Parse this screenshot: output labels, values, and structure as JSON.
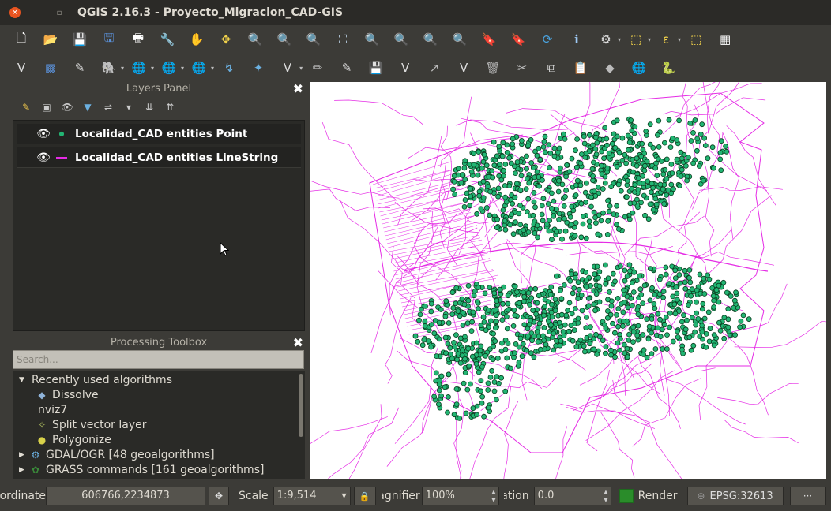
{
  "window": {
    "title": "QGIS 2.16.3 - Proyecto_Migracion_CAD-GIS",
    "close_glyph": "✕",
    "minimize_glyph": "–",
    "maximize_glyph": "▫"
  },
  "toolbar1": {
    "icons": [
      "new-project",
      "open-project",
      "save-project",
      "save-as",
      "print-composer",
      "composer-manager",
      "pan",
      "pan-to-selection",
      "zoom-in",
      "zoom-out",
      "zoom-native",
      "zoom-full",
      "zoom-selection",
      "zoom-layer",
      "zoom-last",
      "zoom-next",
      "new-bookmark",
      "show-bookmarks",
      "refresh",
      "identify",
      "action",
      "select",
      "select-value",
      "deselect",
      "attribute-table"
    ],
    "glyphs": [
      "🗋",
      "📂",
      "💾",
      "🖫",
      "🖶",
      "🔧",
      "✋",
      "✥",
      "🔍",
      "🔍",
      "🔍",
      "⛶",
      "🔍",
      "🔍",
      "🔍",
      "🔍",
      "🔖",
      "🔖",
      "⟳",
      "ℹ",
      "⚙",
      "⬚",
      "ε",
      "⬚",
      "▦"
    ],
    "colors": [
      "#ffffff",
      "#e8b33a",
      "#5a8fd6",
      "#5a8fd6",
      "#ffffff",
      "#ffffff",
      "#ffffff",
      "#f2d34b",
      "#cfe8ff",
      "#cfe8ff",
      "#cfe8ff",
      "#cfe8ff",
      "#f5e07a",
      "#cfe8ff",
      "#cfe8ff",
      "#cfe8ff",
      "#ffffff",
      "#ffffff",
      "#4aa3e0",
      "#9ec9f5",
      "#dddddd",
      "#f2d34b",
      "#f2d34b",
      "#f2d34b",
      "#ffffff"
    ]
  },
  "toolbar2": {
    "icons": [
      "add-vector",
      "add-raster",
      "add-delimited",
      "add-postgis",
      "add-wms",
      "add-wcs",
      "add-wfs",
      "add-virtual",
      "add-spatialite",
      "new-shapefile",
      "digitize-current-edits",
      "toggle-editing",
      "save-edits",
      "add-feature",
      "move-feature",
      "node-tool",
      "delete-selected",
      "cut-features",
      "copy-features",
      "paste-features",
      "gps",
      "globe",
      "python"
    ],
    "glyphs": [
      "V",
      "▩",
      "✎",
      "🐘",
      "🌐",
      "🌐",
      "🌐",
      "↯",
      "✦",
      "V",
      "✏",
      "✎",
      "💾",
      "V",
      "↗",
      "V",
      "🗑",
      "✂",
      "⧉",
      "📋",
      "◆",
      "🌐",
      "🐍"
    ],
    "colors": [
      "#dddddd",
      "#5a8fd6",
      "#dddddd",
      "#6c8ebf",
      "#dddddd",
      "#dddddd",
      "#dddddd",
      "#6bb0e0",
      "#6bb0e0",
      "#dddddd",
      "#bbbbbb",
      "#dddddd",
      "#aaaaaa",
      "#dddddd",
      "#bbbbbb",
      "#dddddd",
      "#bbbbbb",
      "#bbbbbb",
      "#dddddd",
      "#dddddd",
      "#bbbbbb",
      "#dddddd",
      "#f2c94c"
    ]
  },
  "layers_panel": {
    "title": "Layers Panel",
    "close_glyph": "✖",
    "toolbar_glyphs": [
      "✎",
      "▣",
      "👁",
      "▼",
      "⇌",
      "▾",
      "⇊",
      "⇈"
    ],
    "layers": [
      {
        "name": "Localidad_CAD entities Point",
        "geometry": "point",
        "visible": true,
        "eye": "👁"
      },
      {
        "name": "Localidad_CAD entities LineString",
        "geometry": "line",
        "visible": true,
        "eye": "👁"
      }
    ]
  },
  "processing_toolbox": {
    "title": "Processing Toolbox",
    "close_glyph": "✖",
    "search_placeholder": "Search...",
    "tree": [
      {
        "label": "Recently used algorithms",
        "level": 0,
        "expanded": true,
        "arrow": "▼",
        "icon": ""
      },
      {
        "label": "Dissolve",
        "level": 1,
        "arrow": "",
        "icon": "◆"
      },
      {
        "label": "nviz7",
        "level": 1,
        "arrow": "",
        "icon": ""
      },
      {
        "label": "Split vector layer",
        "level": 1,
        "arrow": "",
        "icon": "✧"
      },
      {
        "label": "Polygonize",
        "level": 1,
        "arrow": "",
        "icon": "●"
      },
      {
        "label": "GDAL/OGR [48 geoalgorithms]",
        "level": 0,
        "expanded": false,
        "arrow": "▶",
        "icon": "⚙"
      },
      {
        "label": "GRASS commands [161 geoalgorithms]",
        "level": 0,
        "expanded": false,
        "arrow": "▶",
        "icon": "✿"
      }
    ]
  },
  "map": {
    "point_color": "#22b573",
    "point_stroke": "#0a3d1f",
    "line_color": "#e52be5",
    "background": "#ffffff"
  },
  "statusbar": {
    "coordinate_label": "Coordinate",
    "coordinate_value": "606766,2234873",
    "scale_label": "Scale",
    "scale_value": "1:9,514",
    "magnifier_label": "Magnifier",
    "magnifier_value": "100%",
    "rotation_label": "Rotation",
    "rotation_value": "0.0",
    "render_label": "Render",
    "render_checked": true,
    "crs_label": "EPSG:32613",
    "messages_glyph": "···",
    "lock_glyph": "🔒",
    "coord_toggle_glyph": "✥",
    "crs_glyph": "⊕",
    "dropdown_glyph": "▼",
    "spin_up": "▲",
    "spin_down": "▼"
  }
}
